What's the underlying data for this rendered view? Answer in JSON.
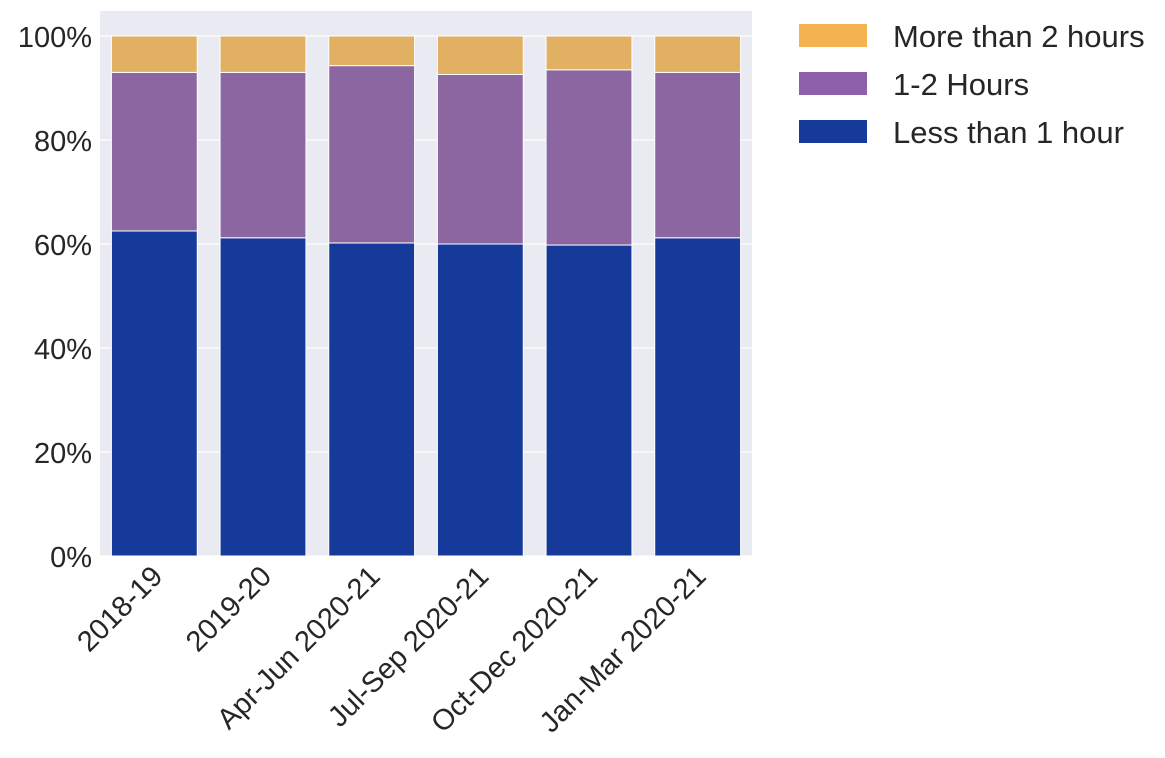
{
  "chart_data": {
    "type": "bar",
    "stacked": true,
    "title": "",
    "xlabel": "",
    "ylabel": "",
    "ylim": [
      0,
      100
    ],
    "y_ticks": [
      "0%",
      "20%",
      "40%",
      "60%",
      "80%",
      "100%"
    ],
    "categories": [
      "2018-19",
      "2019-20",
      "Apr-Jun 2020-21",
      "Jul-Sep 2020-21",
      "Oct-Dec 2020-21",
      "Jan-Mar 2020-21"
    ],
    "series": [
      {
        "name": "Less than 1 hour",
        "color": "#153a9a",
        "values": [
          62.5,
          61.2,
          60.2,
          60.0,
          59.8,
          61.2
        ]
      },
      {
        "name": "1-2 Hours",
        "color": "#8b66a0",
        "values": [
          30.5,
          31.8,
          34.1,
          32.6,
          33.7,
          31.8
        ]
      },
      {
        "name": "More than 2 hours",
        "color": "#e2b063",
        "values": [
          7.0,
          7.0,
          5.7,
          7.4,
          6.5,
          7.0
        ]
      }
    ],
    "legend_order": [
      "More than 2 hours",
      "1-2 Hours",
      "Less than 1 hour"
    ],
    "legend_colors": [
      "#f4b350",
      "#8e5fab",
      "#153a9a"
    ],
    "legend_position": "upper-right-outside",
    "grid": true,
    "background": "#eaeaf2"
  }
}
